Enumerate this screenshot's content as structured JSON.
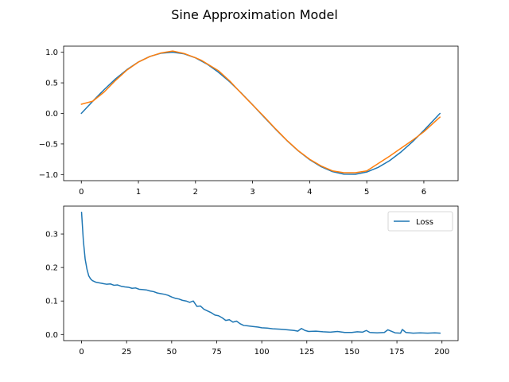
{
  "figure": {
    "title": "Sine Approximation Model"
  },
  "chart_data": [
    {
      "type": "line",
      "title": "",
      "xlabel": "",
      "ylabel": "",
      "xlim": [
        -0.31,
        6.6
      ],
      "ylim": [
        -1.1,
        1.1
      ],
      "xticks": [
        0,
        1,
        2,
        3,
        4,
        5,
        6
      ],
      "yticks": [
        -1.0,
        -0.5,
        0.0,
        0.5,
        1.0
      ],
      "xtick_labels": [
        "0",
        "1",
        "2",
        "3",
        "4",
        "5",
        "6"
      ],
      "ytick_labels": [
        "−1.0",
        "−0.5",
        "0.0",
        "0.5",
        "1.0"
      ],
      "grid": false,
      "series": [
        {
          "color": "#1f77b4",
          "x": [
            0,
            0.2,
            0.4,
            0.6,
            0.8,
            1.0,
            1.2,
            1.4,
            1.6,
            1.8,
            2.0,
            2.2,
            2.4,
            2.6,
            2.8,
            3.0,
            3.2,
            3.4,
            3.6,
            3.8,
            4.0,
            4.2,
            4.4,
            4.6,
            4.8,
            5.0,
            5.2,
            5.4,
            5.6,
            5.8,
            6.0,
            6.283
          ],
          "values": [
            0.0,
            0.199,
            0.389,
            0.565,
            0.717,
            0.841,
            0.932,
            0.985,
            1.0,
            0.974,
            0.909,
            0.808,
            0.675,
            0.516,
            0.335,
            0.141,
            -0.058,
            -0.256,
            -0.443,
            -0.612,
            -0.757,
            -0.872,
            -0.952,
            -0.994,
            -0.996,
            -0.959,
            -0.883,
            -0.773,
            -0.631,
            -0.465,
            -0.279,
            0.0
          ]
        },
        {
          "color": "#ff7f0e",
          "x": [
            0,
            0.2,
            0.4,
            0.6,
            0.8,
            1.0,
            1.2,
            1.4,
            1.6,
            1.8,
            2.0,
            2.1,
            2.4,
            2.6,
            2.8,
            3.0,
            3.2,
            3.4,
            3.6,
            3.8,
            4.0,
            4.2,
            4.4,
            4.6,
            4.8,
            5.0,
            5.2,
            5.4,
            5.6,
            5.8,
            6.0,
            6.283
          ],
          "values": [
            0.15,
            0.2,
            0.35,
            0.54,
            0.71,
            0.84,
            0.93,
            0.99,
            1.02,
            0.98,
            0.91,
            0.87,
            0.7,
            0.53,
            0.33,
            0.14,
            -0.05,
            -0.25,
            -0.44,
            -0.61,
            -0.75,
            -0.86,
            -0.94,
            -0.97,
            -0.97,
            -0.94,
            -0.82,
            -0.7,
            -0.57,
            -0.44,
            -0.3,
            -0.06
          ]
        }
      ]
    },
    {
      "type": "line",
      "title": "",
      "xlabel": "",
      "ylabel": "",
      "xlim": [
        -9.95,
        208.95
      ],
      "ylim": [
        -0.0183,
        0.3833
      ],
      "xticks": [
        0,
        25,
        50,
        75,
        100,
        125,
        150,
        175,
        200
      ],
      "yticks": [
        0.0,
        0.1,
        0.2,
        0.3
      ],
      "xtick_labels": [
        "0",
        "25",
        "50",
        "75",
        "100",
        "125",
        "150",
        "175",
        "200"
      ],
      "ytick_labels": [
        "0.0",
        "0.1",
        "0.2",
        "0.3"
      ],
      "grid": false,
      "legend": "upper-right",
      "series": [
        {
          "name": "Loss",
          "color": "#1f77b4",
          "x": [
            0,
            1,
            2,
            3,
            4,
            5,
            6,
            8,
            10,
            12,
            14,
            16,
            18,
            20,
            22,
            24,
            26,
            28,
            30,
            32,
            34,
            36,
            38,
            40,
            42,
            44,
            46,
            48,
            50,
            52,
            54,
            56,
            58,
            60,
            62,
            64,
            66,
            68,
            70,
            72,
            74,
            76,
            78,
            80,
            82,
            84,
            86,
            88,
            90,
            92,
            95,
            98,
            100,
            103,
            106,
            110,
            114,
            118,
            120,
            122,
            124,
            126,
            130,
            134,
            138,
            142,
            146,
            150,
            153,
            156,
            158,
            160,
            164,
            168,
            170,
            174,
            177,
            178,
            180,
            184,
            188,
            192,
            196,
            199
          ],
          "values": [
            0.365,
            0.28,
            0.225,
            0.195,
            0.175,
            0.166,
            0.161,
            0.156,
            0.154,
            0.152,
            0.15,
            0.151,
            0.147,
            0.148,
            0.144,
            0.142,
            0.141,
            0.138,
            0.139,
            0.135,
            0.134,
            0.133,
            0.13,
            0.128,
            0.124,
            0.122,
            0.12,
            0.117,
            0.112,
            0.108,
            0.106,
            0.102,
            0.1,
            0.096,
            0.1,
            0.084,
            0.085,
            0.075,
            0.07,
            0.065,
            0.058,
            0.056,
            0.05,
            0.042,
            0.044,
            0.037,
            0.04,
            0.032,
            0.027,
            0.026,
            0.024,
            0.022,
            0.02,
            0.019,
            0.017,
            0.016,
            0.014,
            0.012,
            0.01,
            0.018,
            0.012,
            0.009,
            0.01,
            0.008,
            0.007,
            0.009,
            0.006,
            0.006,
            0.008,
            0.007,
            0.012,
            0.006,
            0.005,
            0.006,
            0.014,
            0.005,
            0.004,
            0.015,
            0.006,
            0.004,
            0.005,
            0.004,
            0.005,
            0.004
          ]
        }
      ]
    }
  ]
}
